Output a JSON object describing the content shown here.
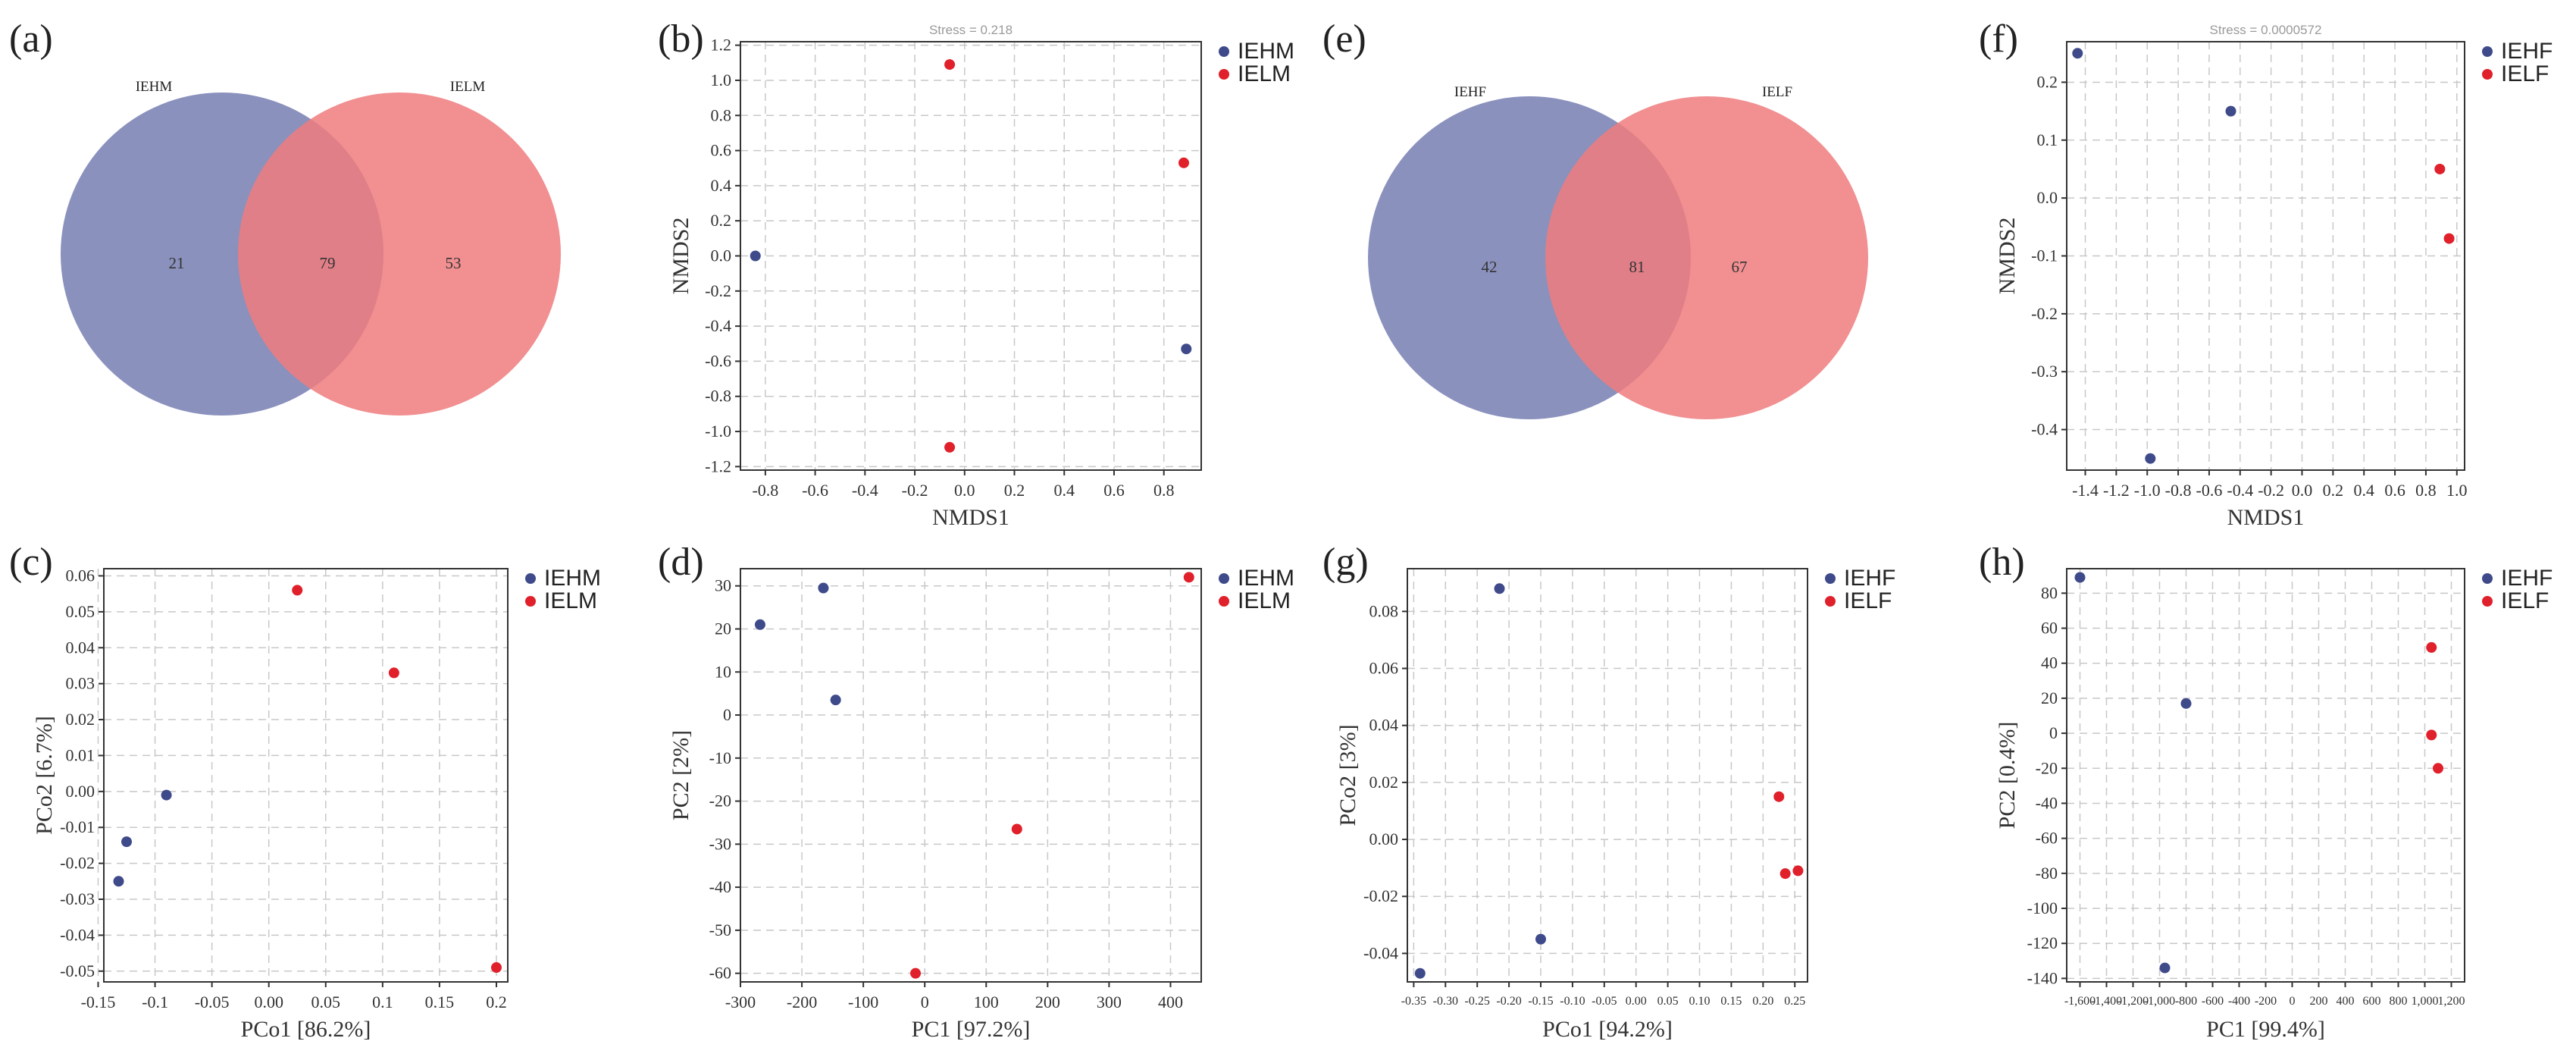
{
  "colors": {
    "blue": "#3e4a8a",
    "red": "#e0202a",
    "venn_blue": "#8a91bd",
    "venn_red": "#ee7b7e",
    "venn_overlap": "#c35e6f"
  },
  "panels": [
    {
      "id": "a",
      "label": "(a)"
    },
    {
      "id": "b",
      "label": "(b)"
    },
    {
      "id": "e",
      "label": "(e)"
    },
    {
      "id": "f",
      "label": "(f)"
    },
    {
      "id": "c",
      "label": "(c)"
    },
    {
      "id": "d",
      "label": "(d)"
    },
    {
      "id": "g",
      "label": "(g)"
    },
    {
      "id": "h",
      "label": "(h)"
    }
  ],
  "chart_data": [
    {
      "id": "a",
      "type": "venn",
      "sets": [
        "IEHM",
        "IELM"
      ],
      "counts": {
        "left_only": "21",
        "both": "79",
        "right_only": "53"
      }
    },
    {
      "id": "b",
      "type": "scatter",
      "subtitle": "Stress = 0.218",
      "xlabel": "NMDS1",
      "ylabel": "NMDS2",
      "xlim": [
        -0.9,
        0.95
      ],
      "ylim": [
        -1.22,
        1.22
      ],
      "xticks": [
        "-0.8",
        "-0.6",
        "-0.4",
        "-0.2",
        "0.0",
        "0.2",
        "0.4",
        "0.6",
        "0.8"
      ],
      "yticks": [
        "-1.2",
        "-1.0",
        "-0.8",
        "-0.6",
        "-0.4",
        "-0.2",
        "0.0",
        "0.2",
        "0.4",
        "0.6",
        "0.8",
        "1.0",
        "1.2"
      ],
      "series": [
        {
          "name": "IEHM",
          "color": "#3e4a8a",
          "points": [
            [
              -0.84,
              0.0
            ],
            [
              0.89,
              -0.53
            ]
          ]
        },
        {
          "name": "IELM",
          "color": "#e0202a",
          "points": [
            [
              -0.06,
              1.09
            ],
            [
              0.88,
              0.53
            ],
            [
              -0.06,
              -1.09
            ]
          ]
        }
      ]
    },
    {
      "id": "e",
      "type": "venn",
      "sets": [
        "IEHF",
        "IELF"
      ],
      "counts": {
        "left_only": "42",
        "both": "81",
        "right_only": "67"
      }
    },
    {
      "id": "f",
      "type": "scatter",
      "subtitle": "Stress = 0.0000572",
      "xlabel": "NMDS1",
      "ylabel": "NMDS2",
      "xlim": [
        -1.52,
        1.05
      ],
      "ylim": [
        -0.47,
        0.27
      ],
      "xticks": [
        "-1.4",
        "-1.2",
        "-1.0",
        "-0.8",
        "-0.6",
        "-0.4",
        "-0.2",
        "0.0",
        "0.2",
        "0.4",
        "0.6",
        "0.8",
        "1.0"
      ],
      "yticks": [
        "-0.4",
        "-0.3",
        "-0.2",
        "-0.1",
        "0.0",
        "0.1",
        "0.2"
      ],
      "series": [
        {
          "name": "IEHF",
          "color": "#3e4a8a",
          "points": [
            [
              -1.45,
              0.25
            ],
            [
              -0.46,
              0.15
            ],
            [
              -0.98,
              -0.45
            ]
          ]
        },
        {
          "name": "IELF",
          "color": "#e0202a",
          "points": [
            [
              0.89,
              0.05
            ],
            [
              0.95,
              -0.07
            ]
          ]
        }
      ]
    },
    {
      "id": "c",
      "type": "scatter",
      "xlabel": "PCo1 [86.2%]",
      "ylabel": "PCo2 [6.7%]",
      "xlim": [
        -0.145,
        0.21
      ],
      "ylim": [
        -0.053,
        0.062
      ],
      "xticks": [
        "-0.15",
        "-0.1",
        "-0.05",
        "0.00",
        "0.05",
        "0.1",
        "0.15",
        "0.2"
      ],
      "yticks": [
        "-0.05",
        "-0.04",
        "-0.03",
        "-0.02",
        "-0.01",
        "0.00",
        "0.01",
        "0.02",
        "0.03",
        "0.04",
        "0.05",
        "0.06"
      ],
      "series": [
        {
          "name": "IEHM",
          "color": "#3e4a8a",
          "points": [
            [
              -0.09,
              -0.001
            ],
            [
              -0.125,
              -0.014
            ],
            [
              -0.132,
              -0.025
            ]
          ]
        },
        {
          "name": "IELM",
          "color": "#e0202a",
          "points": [
            [
              0.025,
              0.056
            ],
            [
              0.11,
              0.033
            ],
            [
              0.2,
              -0.049
            ]
          ]
        }
      ]
    },
    {
      "id": "d",
      "type": "scatter",
      "xlabel": "PC1 [97.2%]",
      "ylabel": "PC2 [2%]",
      "xlim": [
        -300,
        450
      ],
      "ylim": [
        -62,
        34
      ],
      "xticks": [
        "-300",
        "-200",
        "-100",
        "0",
        "100",
        "200",
        "300",
        "400"
      ],
      "yticks": [
        "-60",
        "-50",
        "-40",
        "-30",
        "-20",
        "-10",
        "0",
        "10",
        "20",
        "30"
      ],
      "series": [
        {
          "name": "IEHM",
          "color": "#3e4a8a",
          "points": [
            [
              -268,
              21
            ],
            [
              -165,
              29.5
            ],
            [
              -145,
              3.5
            ]
          ]
        },
        {
          "name": "IELM",
          "color": "#e0202a",
          "points": [
            [
              430,
              32
            ],
            [
              150,
              -26.5
            ],
            [
              -15,
              -60
            ]
          ]
        }
      ]
    },
    {
      "id": "g",
      "type": "scatter",
      "xlabel": "PCo1 [94.2%]",
      "ylabel": "PCo2 [3%]",
      "xlim": [
        -0.36,
        0.27
      ],
      "ylim": [
        -0.05,
        0.095
      ],
      "xticks": [
        "-0.35",
        "-0.30",
        "-0.25",
        "-0.20",
        "-0.15",
        "-0.10",
        "-0.05",
        "0.00",
        "0.05",
        "0.10",
        "0.15",
        "0.20",
        "0.25"
      ],
      "yticks": [
        "-0.04",
        "-0.02",
        "0.00",
        "0.02",
        "0.04",
        "0.06",
        "0.08"
      ],
      "series": [
        {
          "name": "IEHF",
          "color": "#3e4a8a",
          "points": [
            [
              -0.215,
              0.088
            ],
            [
              -0.15,
              -0.035
            ],
            [
              -0.34,
              -0.047
            ]
          ]
        },
        {
          "name": "IELF",
          "color": "#e0202a",
          "points": [
            [
              0.225,
              0.015
            ],
            [
              0.235,
              -0.012
            ],
            [
              0.255,
              -0.011
            ]
          ]
        }
      ]
    },
    {
      "id": "h",
      "type": "scatter",
      "xlabel": "PC1 [99.4%]",
      "ylabel": "PC2 [0.4%]",
      "xlim": [
        -1700,
        1300
      ],
      "ylim": [
        -142,
        94
      ],
      "xticks": [
        "-1,600",
        "-1,400",
        "-1,200",
        "-1,000",
        "-800",
        "-600",
        "-400",
        "-200",
        "0",
        "200",
        "400",
        "600",
        "800",
        "1,000",
        "1,200"
      ],
      "yticks": [
        "-140",
        "-120",
        "-100",
        "-80",
        "-60",
        "-40",
        "-20",
        "0",
        "20",
        "40",
        "60",
        "80"
      ],
      "series": [
        {
          "name": "IEHF",
          "color": "#3e4a8a",
          "points": [
            [
              -1600,
              89
            ],
            [
              -800,
              17
            ],
            [
              -960,
              -134
            ]
          ]
        },
        {
          "name": "IELF",
          "color": "#e0202a",
          "points": [
            [
              1050,
              49
            ],
            [
              1050,
              -1
            ],
            [
              1100,
              -20
            ]
          ]
        }
      ]
    }
  ]
}
